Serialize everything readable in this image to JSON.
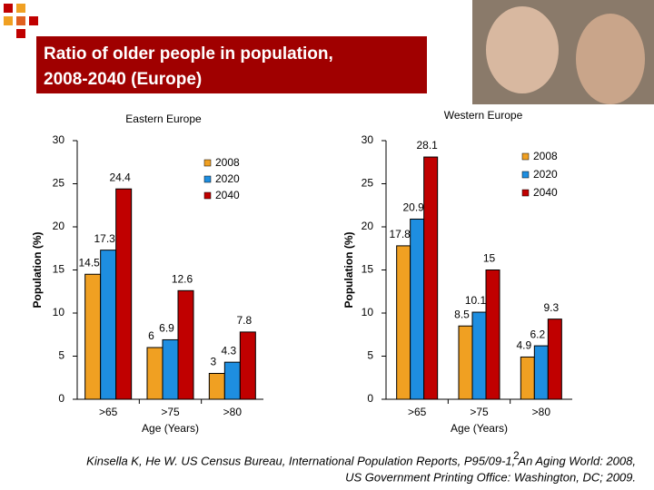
{
  "title": [
    "Ratio of older people in population,",
    "2008-2040 (Europe)"
  ],
  "chart_data": [
    {
      "type": "bar",
      "title": "Eastern Europe",
      "x_label": "Age (Years)",
      "y_label": "Population (%)",
      "categories": [
        ">65",
        ">75",
        ">80"
      ],
      "series": [
        {
          "name": "2008",
          "color": "#f0a022",
          "values": [
            14.5,
            6,
            3
          ]
        },
        {
          "name": "2020",
          "color": "#1e8ee0",
          "values": [
            17.3,
            6.9,
            4.3
          ]
        },
        {
          "name": "2040",
          "color": "#c00000",
          "values": [
            24.4,
            12.6,
            7.8
          ]
        }
      ],
      "ylim": [
        0,
        30
      ],
      "yticks": [
        0,
        5,
        10,
        15,
        20,
        25,
        30
      ]
    },
    {
      "type": "bar",
      "title": "Western Europe",
      "x_label": "Age (Years)",
      "y_label": "Population (%)",
      "categories": [
        ">65",
        ">75",
        ">80"
      ],
      "series": [
        {
          "name": "2008",
          "color": "#f0a022",
          "values": [
            17.8,
            8.5,
            4.9
          ]
        },
        {
          "name": "2020",
          "color": "#1e8ee0",
          "values": [
            20.9,
            10.1,
            6.2
          ]
        },
        {
          "name": "2040",
          "color": "#c00000",
          "values": [
            28.1,
            15,
            9.3
          ]
        }
      ],
      "ylim": [
        0,
        30
      ],
      "yticks": [
        0,
        5,
        10,
        15,
        20,
        25,
        30
      ]
    }
  ],
  "slide_number": "2",
  "footer": [
    "Kinsella K, He W. US Census Bureau, International Population Reports, P95/09-1, An Aging World: 2008,",
    "US Government Printing Office: Washington, DC; 2009."
  ]
}
